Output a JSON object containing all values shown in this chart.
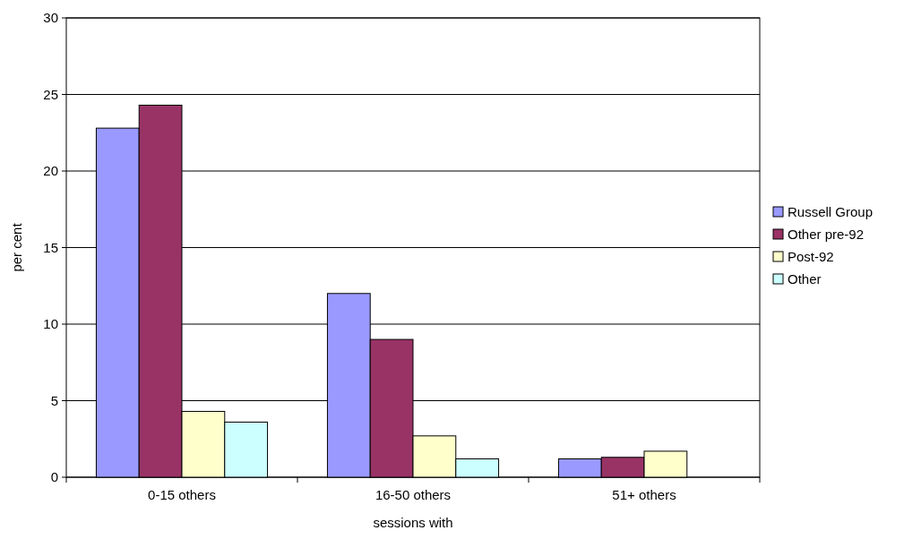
{
  "chart_data": {
    "type": "bar",
    "xlabel": "sessions with",
    "ylabel": "per cent",
    "categories": [
      "0-15 others",
      "16-50 others",
      "51+ others"
    ],
    "series": [
      {
        "name": "Russell Group",
        "color": "#9999ff",
        "values": [
          22.8,
          12.0,
          1.2
        ]
      },
      {
        "name": "Other pre-92",
        "color": "#993366",
        "values": [
          24.3,
          9.0,
          1.3
        ]
      },
      {
        "name": "Post-92",
        "color": "#ffffcc",
        "values": [
          4.3,
          2.7,
          1.7
        ]
      },
      {
        "name": "Other",
        "color": "#ccffff",
        "values": [
          3.6,
          1.2,
          null
        ]
      }
    ],
    "ylim": [
      0,
      30
    ],
    "yticks": [
      0,
      5,
      10,
      15,
      20,
      25,
      30
    ],
    "grid": "y",
    "legend": "right"
  }
}
